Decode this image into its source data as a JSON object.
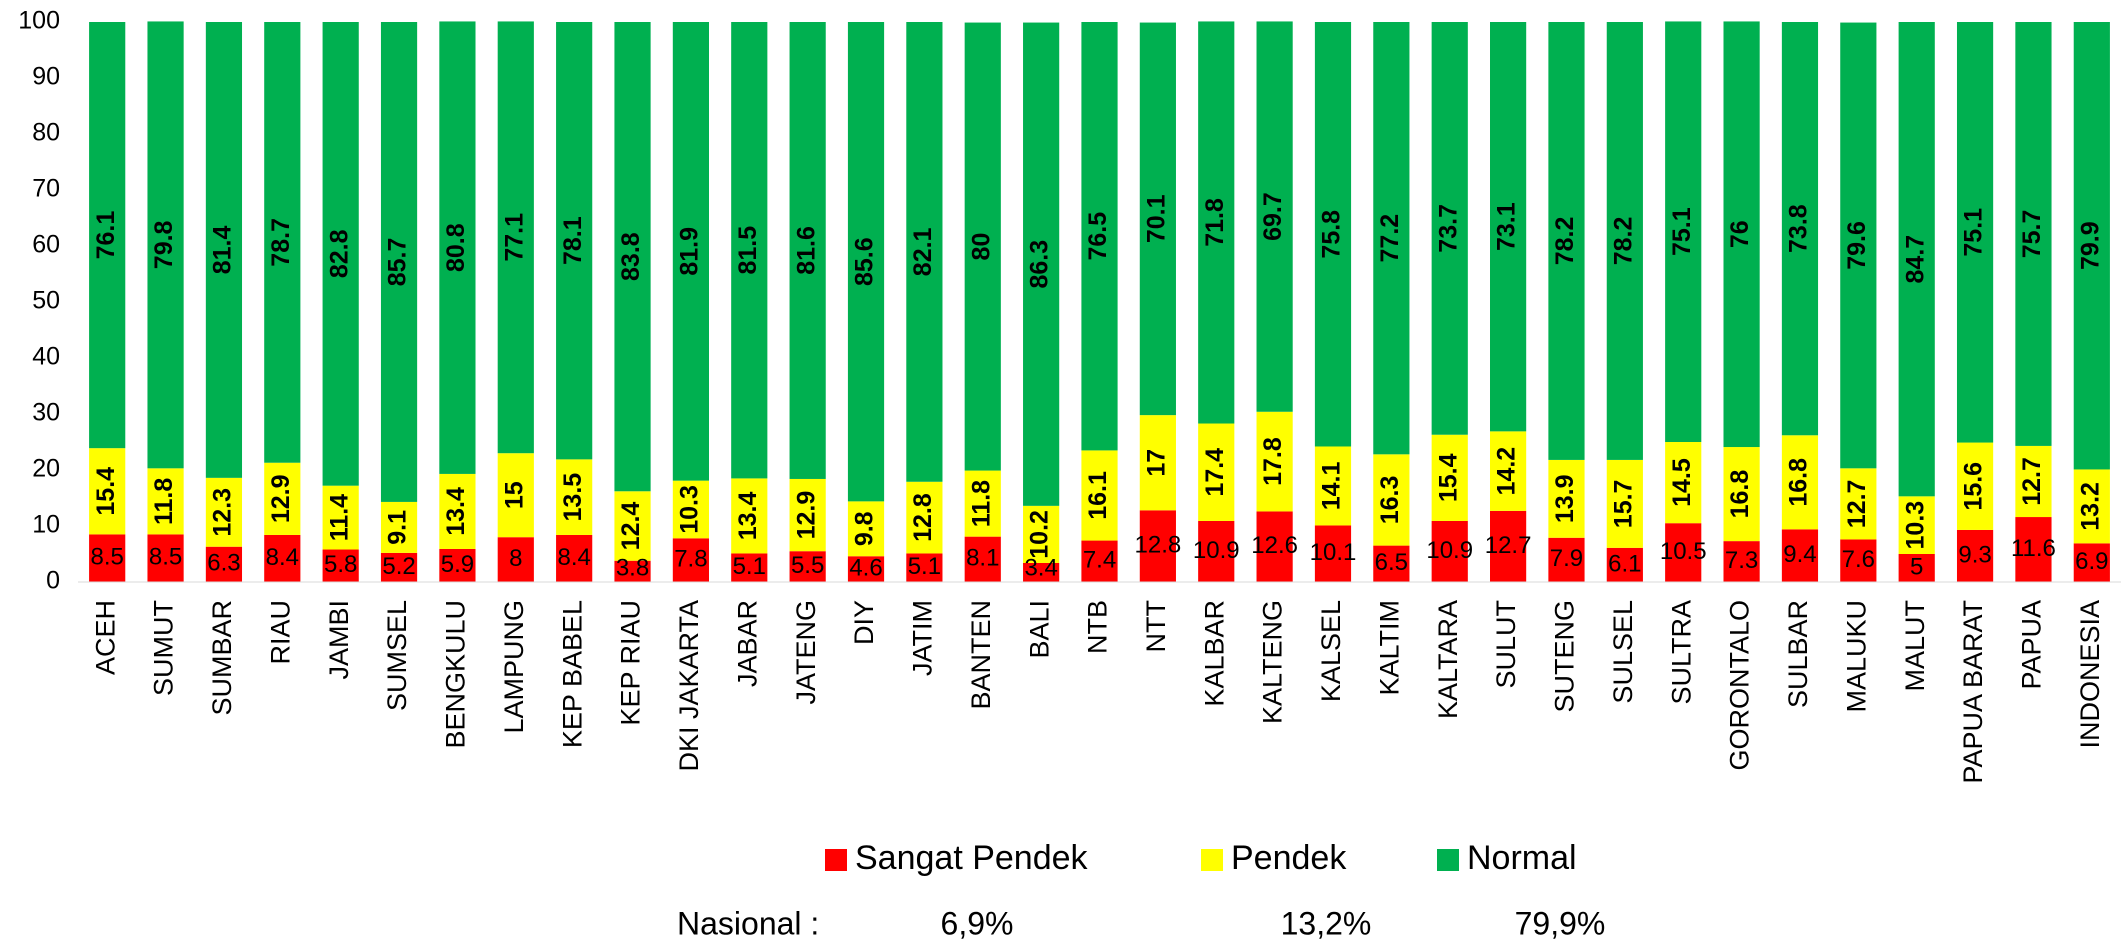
{
  "chart_data": {
    "type": "stacked_bar",
    "categories": [
      "ACEH",
      "SUMUT",
      "SUMBAR",
      "RIAU",
      "JAMBI",
      "SUMSEL",
      "BENGKULU",
      "LAMPUNG",
      "KEP BABEL",
      "KEP RIAU",
      "DKI JAKARTA",
      "JABAR",
      "JATENG",
      "DIY",
      "JATIM",
      "BANTEN",
      "BALI",
      "NTB",
      "NTT",
      "KALBAR",
      "KALTENG",
      "KALSEL",
      "KALTIM",
      "KALTARA",
      "SULUT",
      "SUTENG",
      "SULSEL",
      "SULTRA",
      "GORONTALO",
      "SULBAR",
      "MALUKU",
      "MALUT",
      "PAPUA BARAT",
      "PAPUA",
      "INDONESIA"
    ],
    "series": [
      {
        "name": "Sangat Pendek",
        "color": "#ff0000",
        "values": [
          8.5,
          8.5,
          6.3,
          8.4,
          5.8,
          5.2,
          5.9,
          8,
          8.4,
          3.8,
          7.8,
          5.1,
          5.5,
          4.6,
          5.1,
          8.1,
          3.4,
          7.4,
          12.8,
          10.9,
          12.6,
          10.1,
          6.5,
          10.9,
          12.7,
          7.9,
          6.1,
          10.5,
          7.3,
          9.4,
          7.6,
          5,
          9.3,
          11.6,
          6.9
        ]
      },
      {
        "name": "Pendek",
        "color": "#ffff00",
        "values": [
          15.4,
          11.8,
          12.3,
          12.9,
          11.4,
          9.1,
          13.4,
          15,
          13.5,
          12.4,
          10.3,
          13.4,
          12.9,
          9.8,
          12.8,
          11.8,
          10.2,
          16.1,
          17,
          17.4,
          17.8,
          14.1,
          16.3,
          15.4,
          14.2,
          13.9,
          15.7,
          14.5,
          16.8,
          16.8,
          12.7,
          10.3,
          15.6,
          12.7,
          13.2
        ]
      },
      {
        "name": "Normal",
        "color": "#00b050",
        "values": [
          76.1,
          79.8,
          81.4,
          78.7,
          82.8,
          85.7,
          80.8,
          77.1,
          78.1,
          83.8,
          81.9,
          81.5,
          81.6,
          85.6,
          82.1,
          80,
          86.3,
          76.5,
          70.1,
          71.8,
          69.7,
          75.8,
          77.2,
          73.7,
          73.1,
          78.2,
          78.2,
          75.1,
          76,
          73.8,
          79.6,
          84.7,
          75.1,
          75.7,
          79.9
        ]
      }
    ],
    "ylim": [
      0,
      100
    ],
    "yticks": [
      0,
      10,
      20,
      30,
      40,
      50,
      60,
      70,
      80,
      90,
      100
    ],
    "grid": false,
    "legend": "bottom",
    "footnote": {
      "label": "Nasional :",
      "values": [
        6.9,
        13.2,
        79.9
      ],
      "value_labels": [
        "6,9%",
        "13,2%",
        "79,9%"
      ]
    }
  }
}
